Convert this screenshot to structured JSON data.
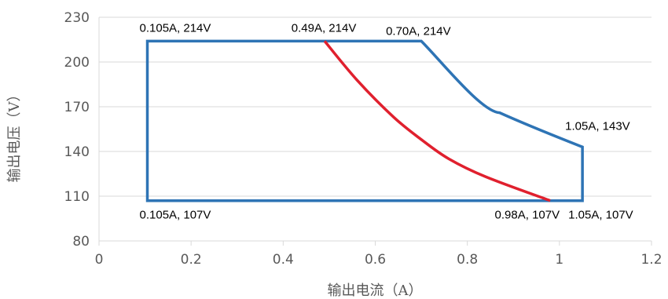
{
  "chart_data": {
    "type": "line",
    "xlabel": "输出电流（A）",
    "ylabel": "输出电压（V）",
    "xlim": [
      0,
      1.2
    ],
    "ylim": [
      80,
      230
    ],
    "x_ticks": [
      "0",
      "0.2",
      "0.4",
      "0.6",
      "0.8",
      "1",
      "1.2"
    ],
    "y_ticks": [
      "80",
      "110",
      "140",
      "170",
      "200",
      "230"
    ],
    "grid": "horizontal",
    "axis_color": "#d9d9d9",
    "grid_color": "#d9d9d9",
    "series": [
      {
        "color": "#2e74b5",
        "points": [
          [
            0.105,
            107
          ],
          [
            0.105,
            214
          ],
          [
            0.49,
            214
          ],
          [
            0.7,
            214
          ],
          [
            0.78,
            190
          ],
          [
            0.87,
            166
          ],
          [
            1.05,
            143
          ],
          [
            1.05,
            107
          ],
          [
            0.105,
            107
          ]
        ]
      },
      {
        "color": "#e0202e",
        "points": [
          [
            0.49,
            214
          ],
          [
            0.56,
            188
          ],
          [
            0.64,
            163
          ],
          [
            0.7,
            148
          ],
          [
            0.76,
            135
          ],
          [
            0.84,
            123
          ],
          [
            0.98,
            107
          ]
        ]
      }
    ],
    "annotations": [
      {
        "text": "0.105A, 214V",
        "x": 0.105,
        "y": 214,
        "anchor": "top-left"
      },
      {
        "text": "0.49A, 214V",
        "x": 0.49,
        "y": 214,
        "anchor": "top-center"
      },
      {
        "text": "0.70A, 214V",
        "x": 0.7,
        "y": 214,
        "anchor": "top-right"
      },
      {
        "text": "1.05A, 143V",
        "x": 1.05,
        "y": 143,
        "anchor": "top-right"
      },
      {
        "text": "0.105A, 107V",
        "x": 0.105,
        "y": 107,
        "anchor": "bottom-left"
      },
      {
        "text": "0.98A, 107V",
        "x": 0.98,
        "y": 107,
        "anchor": "bottom-center"
      },
      {
        "text": "1.05A, 107V",
        "x": 1.05,
        "y": 107,
        "anchor": "bottom-right"
      }
    ]
  }
}
